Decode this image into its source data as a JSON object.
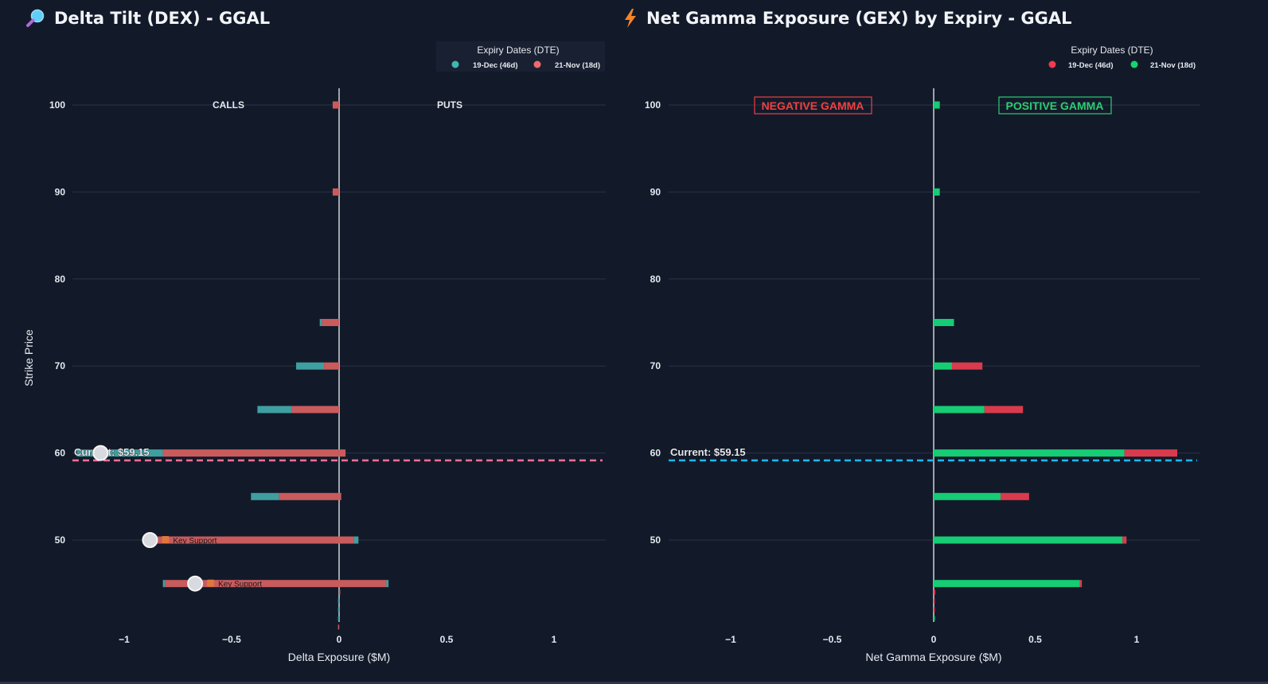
{
  "colors": {
    "background": "#121a2a",
    "grid": "#2a3344",
    "text": "#e6e9ef",
    "teal": "#3f9ea0",
    "salmon": "#c95b5d",
    "red": "#d93b4c",
    "green": "#16cc74",
    "pink_dash": "#ff6f92",
    "blue_dash": "#1cb7ff",
    "neg_gamma": "#ef4040",
    "pos_gamma": "#2ecc71"
  },
  "dex_panel": {
    "title": "Delta Tilt (DEX) - GGAL",
    "title_icon": "magnifier-icon"
  },
  "gex_panel": {
    "title": "Net Gamma Exposure (GEX) by Expiry - GGAL",
    "title_icon": "lightning-icon"
  },
  "chart_data": [
    {
      "id": "dex",
      "type": "bar",
      "orientation": "horizontal",
      "stacked": true,
      "title": "Delta Tilt (DEX) - GGAL",
      "xlabel": "Delta Exposure ($M)",
      "ylabel": "Strike Price",
      "xlim": [
        -1.25,
        1.25
      ],
      "ylim": [
        40,
        102
      ],
      "x_ticks": [
        -1,
        -0.5,
        0,
        0.5,
        1
      ],
      "x_tick_labels": [
        "−1",
        "−0.5",
        "0",
        "0.5",
        "1"
      ],
      "y_ticks": [
        50,
        60,
        70,
        80,
        90,
        100
      ],
      "grid": true,
      "legend": {
        "title": "Expiry Dates (DTE)",
        "position": "top-right",
        "entries": [
          {
            "name": "19-Dec (46d)",
            "color": "#3fb8b0"
          },
          {
            "name": "21-Nov (18d)",
            "color": "#f06a6c"
          }
        ]
      },
      "side_labels": {
        "left": "CALLS",
        "right": "PUTS"
      },
      "current_price": {
        "value": 59.15,
        "label": "Current: $59.15",
        "color": "#ff6f92"
      },
      "bars": [
        {
          "strike": 100,
          "segments": [
            {
              "series": "21-Nov (18d)",
              "from": -0.03,
              "to": 0
            }
          ]
        },
        {
          "strike": 90,
          "segments": [
            {
              "series": "21-Nov (18d)",
              "from": -0.03,
              "to": 0
            }
          ]
        },
        {
          "strike": 75,
          "segments": [
            {
              "series": "19-Dec (46d)",
              "from": -0.09,
              "to": -0.08
            },
            {
              "series": "21-Nov (18d)",
              "from": -0.08,
              "to": 0
            }
          ]
        },
        {
          "strike": 70,
          "segments": [
            {
              "series": "19-Dec (46d)",
              "from": -0.2,
              "to": -0.07
            },
            {
              "series": "21-Nov (18d)",
              "from": -0.07,
              "to": 0
            }
          ]
        },
        {
          "strike": 65,
          "segments": [
            {
              "series": "19-Dec (46d)",
              "from": -0.38,
              "to": -0.22
            },
            {
              "series": "21-Nov (18d)",
              "from": -0.22,
              "to": 0
            }
          ]
        },
        {
          "strike": 60,
          "segments": [
            {
              "series": "19-Dec (46d)",
              "from": -1.22,
              "to": -0.82
            },
            {
              "series": "21-Nov (18d)",
              "from": -0.82,
              "to": 0.03
            }
          ]
        },
        {
          "strike": 55,
          "segments": [
            {
              "series": "19-Dec (46d)",
              "from": -0.41,
              "to": -0.28
            },
            {
              "series": "21-Nov (18d)",
              "from": -0.28,
              "to": 0.01
            }
          ]
        },
        {
          "strike": 50,
          "segments": [
            {
              "series": "21-Nov (18d)",
              "from": -0.87,
              "to": 0.07
            },
            {
              "series": "19-Dec (46d)",
              "from": 0.07,
              "to": 0.09
            }
          ]
        },
        {
          "strike": 45,
          "segments": [
            {
              "series": "19-Dec (46d)",
              "from": -0.82,
              "to": -0.81
            },
            {
              "series": "21-Nov (18d)",
              "from": -0.81,
              "to": 0.22
            },
            {
              "series": "19-Dec (46d)",
              "from": 0.22,
              "to": 0.23
            }
          ]
        },
        {
          "strike": 44,
          "segments": [
            {
              "series": "21-Nov (18d)",
              "from": 0,
              "to": 0.005
            }
          ]
        },
        {
          "strike": 43,
          "segments": [
            {
              "series": "19-Dec (46d)",
              "from": -0.005,
              "to": 0
            }
          ]
        },
        {
          "strike": 42,
          "segments": [
            {
              "series": "19-Dec (46d)",
              "from": -0.005,
              "to": 0
            }
          ]
        },
        {
          "strike": 41,
          "segments": [
            {
              "series": "19-Dec (46d)",
              "from": -0.005,
              "to": 0
            }
          ]
        },
        {
          "strike": 40,
          "segments": [
            {
              "series": "21-Nov (18d)",
              "from": -0.005,
              "to": 0
            }
          ]
        }
      ],
      "markers": [
        {
          "x": -1.11,
          "strike": 60,
          "label": ""
        },
        {
          "x": -0.88,
          "strike": 50,
          "label": "Key Support"
        },
        {
          "x": -0.67,
          "strike": 45,
          "label": "Key Support"
        }
      ]
    },
    {
      "id": "gex",
      "type": "bar",
      "orientation": "horizontal",
      "stacked": true,
      "title": "Net Gamma Exposure (GEX) by Expiry - GGAL",
      "xlabel": "Net Gamma Exposure ($M)",
      "ylabel": "Strike Price",
      "xlim": [
        -1.31,
        1.31
      ],
      "ylim": [
        40,
        102
      ],
      "x_ticks": [
        -1,
        -0.5,
        0,
        0.5,
        1
      ],
      "x_tick_labels": [
        "−1",
        "−0.5",
        "0",
        "0.5",
        "1"
      ],
      "y_ticks": [
        50,
        60,
        70,
        80,
        90,
        100
      ],
      "grid": true,
      "legend": {
        "title": "Expiry Dates (DTE)",
        "position": "top-right",
        "entries": [
          {
            "name": "19-Dec (46d)",
            "color": "#ef3b4e"
          },
          {
            "name": "21-Nov (18d)",
            "color": "#17d46f"
          }
        ]
      },
      "zone_labels": {
        "negative": "NEGATIVE GAMMA",
        "positive": "POSITIVE GAMMA"
      },
      "current_price": {
        "value": 59.15,
        "label": "Current: $59.15",
        "color": "#1cb7ff"
      },
      "bars": [
        {
          "strike": 100,
          "segments": [
            {
              "series": "21-Nov (18d)",
              "from": 0,
              "to": 0.03
            }
          ]
        },
        {
          "strike": 90,
          "segments": [
            {
              "series": "21-Nov (18d)",
              "from": 0,
              "to": 0.03
            }
          ]
        },
        {
          "strike": 75,
          "segments": [
            {
              "series": "21-Nov (18d)",
              "from": 0,
              "to": 0.1
            }
          ]
        },
        {
          "strike": 70,
          "segments": [
            {
              "series": "21-Nov (18d)",
              "from": 0,
              "to": 0.09
            },
            {
              "series": "19-Dec (46d)",
              "from": 0.09,
              "to": 0.24
            }
          ]
        },
        {
          "strike": 65,
          "segments": [
            {
              "series": "21-Nov (18d)",
              "from": 0,
              "to": 0.25
            },
            {
              "series": "19-Dec (46d)",
              "from": 0.25,
              "to": 0.44
            }
          ]
        },
        {
          "strike": 60,
          "segments": [
            {
              "series": "21-Nov (18d)",
              "from": 0,
              "to": 0.94
            },
            {
              "series": "19-Dec (46d)",
              "from": 0.94,
              "to": 1.2
            }
          ]
        },
        {
          "strike": 55,
          "segments": [
            {
              "series": "21-Nov (18d)",
              "from": 0,
              "to": 0.33
            },
            {
              "series": "19-Dec (46d)",
              "from": 0.33,
              "to": 0.47
            }
          ]
        },
        {
          "strike": 50,
          "segments": [
            {
              "series": "21-Nov (18d)",
              "from": 0,
              "to": 0.93
            },
            {
              "series": "19-Dec (46d)",
              "from": 0.93,
              "to": 0.95
            }
          ]
        },
        {
          "strike": 45,
          "segments": [
            {
              "series": "21-Nov (18d)",
              "from": 0,
              "to": 0.72
            },
            {
              "series": "19-Dec (46d)",
              "from": 0.72,
              "to": 0.73
            }
          ]
        },
        {
          "strike": 44,
          "segments": [
            {
              "series": "19-Dec (46d)",
              "from": 0,
              "to": 0.008
            }
          ]
        },
        {
          "strike": 43,
          "segments": [
            {
              "series": "19-Dec (46d)",
              "from": 0,
              "to": 0.005
            }
          ]
        },
        {
          "strike": 42,
          "segments": [
            {
              "series": "19-Dec (46d)",
              "from": 0,
              "to": 0.004
            }
          ]
        },
        {
          "strike": 41,
          "segments": [
            {
              "series": "21-Nov (18d)",
              "from": 0,
              "to": 0.005
            }
          ]
        }
      ]
    }
  ]
}
